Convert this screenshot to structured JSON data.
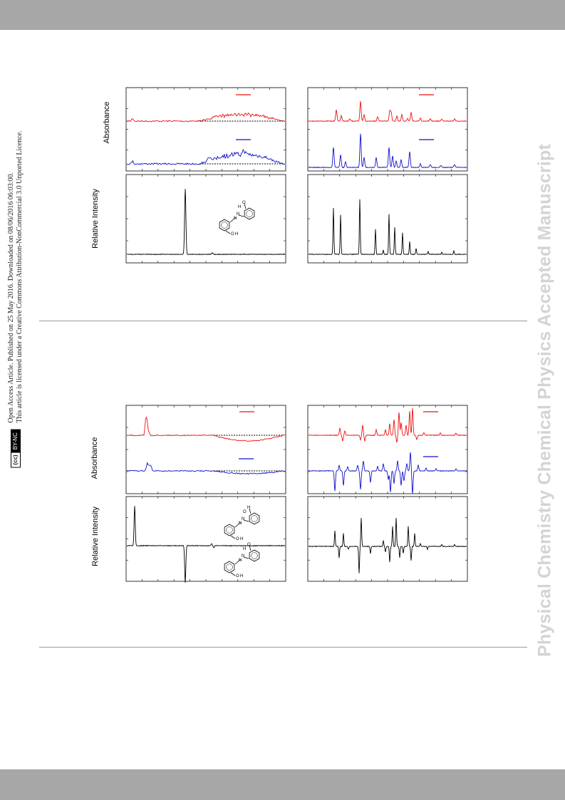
{
  "watermark": "Physical Chemistry Chemical Physics Accepted Manuscript",
  "license": {
    "cc_badge": "BY-NC",
    "line1": "Open Access Article. Published on 25 May 2016. Downloaded on 08/06/2016 06:03:00.",
    "line2": "This article is licensed under a Creative Commons Attribution-NonCommercial 3.0 Unported Licence."
  },
  "figures": [
    {
      "absorbance_label": "Absorbance",
      "intensity_label": "Relative Intensity",
      "molecule_labels": [
        "O",
        "H",
        "N",
        "N",
        "O",
        "H"
      ]
    },
    {
      "absorbance_label": "Absorbance",
      "intensity_label": "Relative Intensity",
      "molecule_labels": [
        "H",
        "O",
        "N",
        "N",
        "O",
        "H",
        "O",
        "H",
        "N",
        "N",
        "O",
        "H"
      ]
    }
  ],
  "colors": {
    "red_trace": "#ee1111",
    "blue_trace": "#1111cc",
    "black_trace": "#000000",
    "band": "#a7a7a7",
    "watermark": "#d3d3d8"
  },
  "chart_data": [
    {
      "type": "line",
      "panel": "top-left",
      "series": [
        {
          "color": "red"
        },
        {
          "color": "blue"
        }
      ]
    },
    {
      "type": "line",
      "panel": "top-right",
      "series": [
        {
          "color": "red"
        },
        {
          "color": "blue"
        }
      ]
    },
    {
      "type": "line",
      "panel": "middle-left",
      "series": [
        {
          "color": "black"
        }
      ]
    },
    {
      "type": "line",
      "panel": "middle-right",
      "series": [
        {
          "color": "black"
        }
      ]
    },
    {
      "type": "line",
      "panel": "bottom-top-left",
      "series": [
        {
          "color": "red"
        },
        {
          "color": "blue"
        }
      ]
    },
    {
      "type": "line",
      "panel": "bottom-top-right",
      "series": [
        {
          "color": "red"
        },
        {
          "color": "blue"
        }
      ]
    },
    {
      "type": "line",
      "panel": "bottom-bottom-left",
      "series": [
        {
          "color": "black"
        }
      ]
    },
    {
      "type": "line",
      "panel": "bottom-bottom-right",
      "series": [
        {
          "color": "black"
        }
      ]
    }
  ]
}
